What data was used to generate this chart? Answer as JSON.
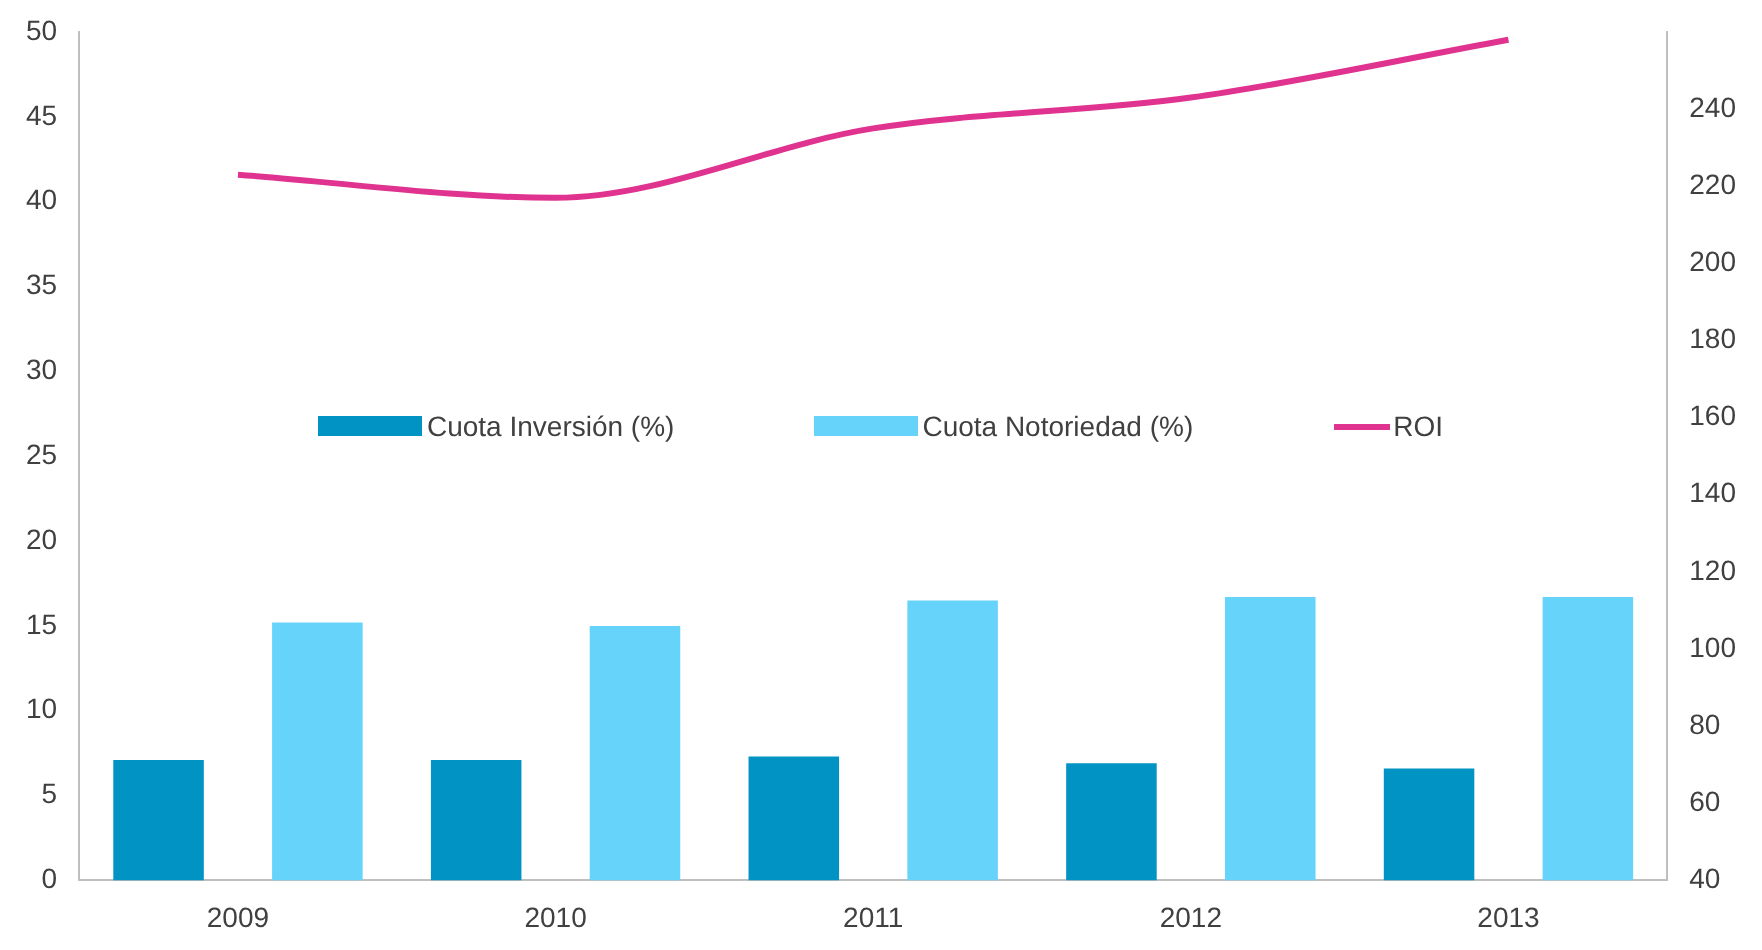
{
  "chart_data": {
    "type": "bar",
    "categories": [
      "2009",
      "2010",
      "2011",
      "2012",
      "2013"
    ],
    "series": [
      {
        "name": "Cuota Inversión (%)",
        "color": "#0093c4",
        "values": [
          7.1,
          7.1,
          7.3,
          6.9,
          6.6
        ]
      },
      {
        "name": "Cuota Notoriedad (%)",
        "color": "#66d4fa",
        "values": [
          15.2,
          15.0,
          16.5,
          16.7,
          16.7
        ]
      },
      {
        "name": "ROI",
        "type": "line",
        "axis": "y2",
        "color": "#e0338f",
        "values": [
          223,
          217,
          235,
          243,
          258
        ]
      }
    ],
    "ylim": [
      0,
      50
    ],
    "yticks": [
      0,
      5,
      10,
      15,
      20,
      25,
      30,
      35,
      40,
      45,
      50
    ],
    "y2lim": [
      40,
      260
    ],
    "y2ticks": [
      40,
      60,
      80,
      100,
      120,
      140,
      160,
      180,
      200,
      220,
      240
    ],
    "grid": false,
    "legend": "center",
    "marker": "none"
  }
}
